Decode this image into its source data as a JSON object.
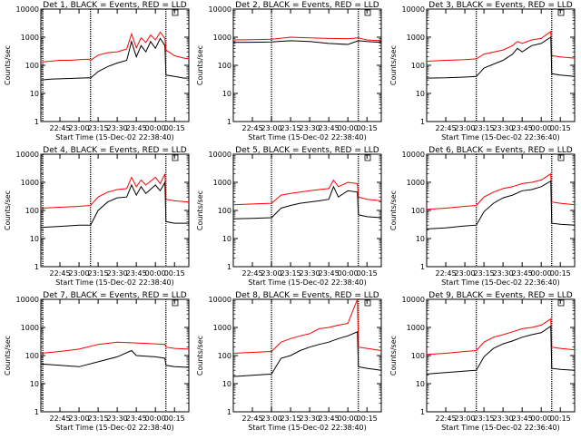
{
  "figure": {
    "background": "#ffffff",
    "events_color": "#000000",
    "lld_color": "#ff0000"
  },
  "chart_data": [
    {
      "type": "line",
      "title": "Det 1, BLACK = Events, RED = LLD",
      "xlabel": "Start Time (15-Dec-02 22:38:40)",
      "ylabel": "Counts/sec",
      "ylim": [
        1,
        10000
      ],
      "yscale": "log",
      "yticks": [
        1,
        10,
        100,
        1000,
        10000
      ],
      "ytick_labels": [
        "1",
        "10",
        "100",
        "1000",
        "10000"
      ],
      "xticks": [
        0.2,
        0.4,
        0.6,
        0.8,
        1.0,
        1.2,
        1.4
      ],
      "xtick_labels": [
        "22:45",
        "23:00",
        "23:15",
        "23:30",
        "23:45",
        "00:00",
        "00:15"
      ],
      "markers": [
        0.02,
        0.52,
        1.31
      ],
      "series": [
        {
          "name": "LLD",
          "x": [
            0.0,
            0.1,
            0.2,
            0.3,
            0.4,
            0.5,
            0.52,
            0.6,
            0.7,
            0.8,
            0.9,
            0.95,
            1.0,
            1.05,
            1.1,
            1.15,
            1.2,
            1.25,
            1.3,
            1.31,
            1.4,
            1.5,
            1.55
          ],
          "y": [
            130,
            140,
            150,
            150,
            160,
            165,
            150,
            230,
            280,
            300,
            380,
            1300,
            420,
            950,
            650,
            1200,
            800,
            1500,
            900,
            350,
            220,
            180,
            170
          ]
        },
        {
          "name": "Events",
          "x": [
            0.0,
            0.1,
            0.2,
            0.3,
            0.4,
            0.5,
            0.52,
            0.6,
            0.7,
            0.8,
            0.9,
            0.95,
            1.0,
            1.05,
            1.1,
            1.15,
            1.2,
            1.25,
            1.3,
            1.31,
            1.4,
            1.5,
            1.55
          ],
          "y": [
            30,
            32,
            33,
            34,
            35,
            36,
            35,
            60,
            90,
            120,
            150,
            700,
            200,
            500,
            300,
            700,
            400,
            900,
            500,
            45,
            40,
            35,
            35
          ]
        }
      ]
    },
    {
      "type": "line",
      "title": "Det 2, BLACK = Events, RED = LLD",
      "xlabel": "Start Time (15-Dec-02 22:38:40)",
      "ylabel": "Counts/sec",
      "ylim": [
        1,
        10000
      ],
      "yscale": "log",
      "yticks": [
        1,
        10,
        100,
        1000,
        10000
      ],
      "ytick_labels": [
        "1",
        "10",
        "100",
        "1000",
        "10000"
      ],
      "xticks": [
        0.2,
        0.4,
        0.6,
        0.8,
        1.0,
        1.2,
        1.4
      ],
      "xtick_labels": [
        "22:45",
        "23:00",
        "23:15",
        "23:30",
        "23:45",
        "00:00",
        "00:15"
      ],
      "markers": [
        0.4,
        1.31
      ],
      "series": [
        {
          "name": "LLD",
          "x": [
            0.0,
            0.2,
            0.4,
            0.6,
            0.8,
            1.0,
            1.2,
            1.31,
            1.4,
            1.55
          ],
          "y": [
            800,
            820,
            850,
            1000,
            950,
            900,
            880,
            950,
            800,
            750
          ]
        },
        {
          "name": "Events",
          "x": [
            0.0,
            0.2,
            0.4,
            0.6,
            0.8,
            1.0,
            1.2,
            1.31,
            1.4,
            1.55
          ],
          "y": [
            650,
            660,
            680,
            750,
            700,
            600,
            550,
            750,
            700,
            650
          ]
        }
      ]
    },
    {
      "type": "line",
      "title": "Det 3, BLACK = Events, RED = LLD",
      "xlabel": "Start Time (15-Dec-02 22:36:40)",
      "ylabel": "Counts/sec",
      "ylim": [
        1,
        10000
      ],
      "yscale": "log",
      "yticks": [
        1,
        10,
        100,
        1000,
        10000
      ],
      "ytick_labels": [
        "1",
        "10",
        "100",
        "1000",
        "10000"
      ],
      "xticks": [
        0.2,
        0.4,
        0.6,
        0.8,
        1.0,
        1.2,
        1.4
      ],
      "xtick_labels": [
        "22:45",
        "23:00",
        "23:15",
        "23:30",
        "23:45",
        "00:00",
        "00:15"
      ],
      "markers": [
        0.52,
        1.31
      ],
      "series": [
        {
          "name": "LLD",
          "x": [
            0.0,
            0.2,
            0.4,
            0.52,
            0.6,
            0.8,
            0.9,
            0.95,
            1.0,
            1.1,
            1.2,
            1.3,
            1.31,
            1.4,
            1.55
          ],
          "y": [
            140,
            150,
            160,
            170,
            250,
            350,
            500,
            700,
            600,
            800,
            900,
            1600,
            220,
            200,
            180
          ]
        },
        {
          "name": "Events",
          "x": [
            0.0,
            0.2,
            0.4,
            0.52,
            0.6,
            0.8,
            0.9,
            0.95,
            1.0,
            1.1,
            1.2,
            1.3,
            1.31,
            1.4,
            1.55
          ],
          "y": [
            35,
            36,
            38,
            40,
            80,
            150,
            250,
            400,
            300,
            500,
            600,
            1000,
            50,
            45,
            40
          ]
        }
      ]
    },
    {
      "type": "line",
      "title": "Det 4, BLACK = Events, RED = LLD",
      "xlabel": "Start Time (15-Dec-02 22:38:40)",
      "ylabel": "Counts/sec",
      "ylim": [
        1,
        10000
      ],
      "yscale": "log",
      "yticks": [
        1,
        10,
        100,
        1000,
        10000
      ],
      "ytick_labels": [
        "1",
        "10",
        "100",
        "1000",
        "10000"
      ],
      "xticks": [
        0.2,
        0.4,
        0.6,
        0.8,
        1.0,
        1.2,
        1.4
      ],
      "xtick_labels": [
        "22:45",
        "23:00",
        "23:15",
        "23:30",
        "23:45",
        "00:00",
        "00:15"
      ],
      "markers": [
        0.02,
        0.52,
        1.31
      ],
      "series": [
        {
          "name": "LLD",
          "x": [
            0.0,
            0.2,
            0.4,
            0.52,
            0.6,
            0.7,
            0.8,
            0.9,
            0.95,
            1.0,
            1.05,
            1.1,
            1.2,
            1.25,
            1.3,
            1.31,
            1.4,
            1.55
          ],
          "y": [
            120,
            130,
            140,
            150,
            300,
            450,
            550,
            600,
            1500,
            700,
            1200,
            800,
            1500,
            900,
            2000,
            250,
            220,
            200
          ]
        },
        {
          "name": "Events",
          "x": [
            0.0,
            0.2,
            0.4,
            0.52,
            0.6,
            0.7,
            0.8,
            0.9,
            0.95,
            1.0,
            1.05,
            1.1,
            1.2,
            1.25,
            1.3,
            1.31,
            1.4,
            1.55
          ],
          "y": [
            25,
            27,
            30,
            30,
            100,
            200,
            280,
            300,
            800,
            350,
            700,
            400,
            800,
            500,
            1000,
            40,
            35,
            35
          ]
        }
      ]
    },
    {
      "type": "line",
      "title": "Det 5, BLACK = Events, RED = LLD",
      "xlabel": "Start Time (15-Dec-02 22:38:40)",
      "ylabel": "Counts/sec",
      "ylim": [
        1,
        10000
      ],
      "yscale": "log",
      "yticks": [
        1,
        10,
        100,
        1000,
        10000
      ],
      "ytick_labels": [
        "1",
        "10",
        "100",
        "1000",
        "10000"
      ],
      "xticks": [
        0.2,
        0.4,
        0.6,
        0.8,
        1.0,
        1.2,
        1.4
      ],
      "xtick_labels": [
        "22:45",
        "23:00",
        "23:15",
        "23:30",
        "23:45",
        "00:00",
        "00:15"
      ],
      "markers": [
        0.4,
        1.31
      ],
      "series": [
        {
          "name": "LLD",
          "x": [
            0.0,
            0.2,
            0.4,
            0.5,
            0.6,
            0.7,
            0.8,
            0.9,
            1.0,
            1.05,
            1.1,
            1.2,
            1.3,
            1.31,
            1.4,
            1.55
          ],
          "y": [
            160,
            170,
            180,
            350,
            400,
            450,
            500,
            550,
            600,
            1200,
            700,
            1000,
            900,
            300,
            250,
            220
          ]
        },
        {
          "name": "Events",
          "x": [
            0.0,
            0.2,
            0.4,
            0.5,
            0.6,
            0.7,
            0.8,
            0.9,
            1.0,
            1.05,
            1.1,
            1.2,
            1.3,
            1.31,
            1.4,
            1.55
          ],
          "y": [
            50,
            52,
            55,
            120,
            150,
            180,
            200,
            220,
            250,
            700,
            300,
            500,
            450,
            70,
            60,
            55
          ]
        }
      ]
    },
    {
      "type": "line",
      "title": "Det 6, BLACK = Events, RED = LLD",
      "xlabel": "Start Time (15-Dec-02 22:36:40)",
      "ylabel": "Counts/sec",
      "ylim": [
        1,
        10000
      ],
      "yscale": "log",
      "yticks": [
        1,
        10,
        100,
        1000,
        10000
      ],
      "ytick_labels": [
        "1",
        "10",
        "100",
        "1000",
        "10000"
      ],
      "xticks": [
        0.2,
        0.4,
        0.6,
        0.8,
        1.0,
        1.2,
        1.4
      ],
      "xtick_labels": [
        "22:45",
        "23:00",
        "23:15",
        "23:30",
        "23:45",
        "00:00",
        "00:15"
      ],
      "markers": [
        0.52,
        1.31
      ],
      "series": [
        {
          "name": "LLD",
          "x": [
            0.0,
            0.2,
            0.4,
            0.52,
            0.6,
            0.7,
            0.8,
            0.9,
            1.0,
            1.1,
            1.2,
            1.3,
            1.31,
            1.4,
            1.55
          ],
          "y": [
            110,
            120,
            140,
            150,
            300,
            450,
            600,
            700,
            900,
            1000,
            1200,
            2000,
            200,
            180,
            160
          ]
        },
        {
          "name": "Events",
          "x": [
            0.0,
            0.2,
            0.4,
            0.52,
            0.6,
            0.7,
            0.8,
            0.9,
            1.0,
            1.1,
            1.2,
            1.3,
            1.31,
            1.4,
            1.55
          ],
          "y": [
            22,
            24,
            28,
            30,
            90,
            180,
            280,
            350,
            500,
            550,
            700,
            1100,
            35,
            32,
            30
          ]
        }
      ]
    },
    {
      "type": "line",
      "title": "Det 7, BLACK = Events, RED = LLD",
      "xlabel": "Start Time (15-Dec-02 22:38:40)",
      "ylabel": "Counts/sec",
      "ylim": [
        1,
        10000
      ],
      "yscale": "log",
      "yticks": [
        1,
        10,
        100,
        1000,
        10000
      ],
      "ytick_labels": [
        "1",
        "10",
        "100",
        "1000",
        "10000"
      ],
      "xticks": [
        0.2,
        0.4,
        0.6,
        0.8,
        1.0,
        1.2,
        1.4
      ],
      "xtick_labels": [
        "22:45",
        "23:00",
        "23:15",
        "23:30",
        "23:45",
        "00:00",
        "00:15"
      ],
      "markers": [
        0.02,
        1.31
      ],
      "series": [
        {
          "name": "LLD",
          "x": [
            0.0,
            0.2,
            0.4,
            0.6,
            0.8,
            1.0,
            1.2,
            1.3,
            1.31,
            1.4,
            1.55
          ],
          "y": [
            120,
            140,
            170,
            250,
            300,
            280,
            260,
            250,
            200,
            180,
            170
          ]
        },
        {
          "name": "Events",
          "x": [
            0.0,
            0.2,
            0.4,
            0.6,
            0.8,
            0.95,
            1.0,
            1.2,
            1.3,
            1.31,
            1.4,
            1.55
          ],
          "y": [
            50,
            45,
            40,
            60,
            90,
            150,
            100,
            90,
            80,
            45,
            40,
            38
          ]
        }
      ]
    },
    {
      "type": "line",
      "title": "Det 8, BLACK = Events, RED = LLD",
      "xlabel": "Start Time (15-Dec-02 22:38:40)",
      "ylabel": "Counts/sec",
      "ylim": [
        1,
        10000
      ],
      "yscale": "log",
      "yticks": [
        1,
        10,
        100,
        1000,
        10000
      ],
      "ytick_labels": [
        "1",
        "10",
        "100",
        "1000",
        "10000"
      ],
      "xticks": [
        0.2,
        0.4,
        0.6,
        0.8,
        1.0,
        1.2,
        1.4
      ],
      "xtick_labels": [
        "22:45",
        "23:00",
        "23:15",
        "23:30",
        "23:45",
        "00:00",
        "00:15"
      ],
      "markers": [
        0.4,
        1.31
      ],
      "series": [
        {
          "name": "LLD",
          "x": [
            0.0,
            0.2,
            0.4,
            0.5,
            0.6,
            0.7,
            0.8,
            0.9,
            1.0,
            1.1,
            1.2,
            1.3,
            1.31,
            1.4,
            1.55
          ],
          "y": [
            120,
            130,
            140,
            300,
            400,
            500,
            600,
            900,
            1000,
            1200,
            1400,
            10000,
            200,
            180,
            150
          ]
        },
        {
          "name": "Events",
          "x": [
            0.0,
            0.2,
            0.4,
            0.5,
            0.6,
            0.7,
            0.8,
            0.9,
            1.0,
            1.1,
            1.2,
            1.3,
            1.31,
            1.4,
            1.55
          ],
          "y": [
            18,
            20,
            22,
            80,
            100,
            150,
            200,
            250,
            300,
            400,
            500,
            700,
            40,
            35,
            30
          ]
        }
      ]
    },
    {
      "type": "line",
      "title": "Det 9, BLACK = Events, RED = LLD",
      "xlabel": "Start Time (15-Dec-02 22:36:40)",
      "ylabel": "Counts/sec",
      "ylim": [
        1,
        10000
      ],
      "yscale": "log",
      "yticks": [
        1,
        10,
        100,
        1000,
        10000
      ],
      "ytick_labels": [
        "1",
        "10",
        "100",
        "1000",
        "10000"
      ],
      "xticks": [
        0.2,
        0.4,
        0.6,
        0.8,
        1.0,
        1.2,
        1.4
      ],
      "xtick_labels": [
        "22:45",
        "23:00",
        "23:15",
        "23:30",
        "23:45",
        "00:00",
        "00:15"
      ],
      "markers": [
        0.52,
        1.31
      ],
      "series": [
        {
          "name": "LLD",
          "x": [
            0.0,
            0.2,
            0.4,
            0.52,
            0.6,
            0.7,
            0.8,
            0.9,
            1.0,
            1.1,
            1.2,
            1.3,
            1.31,
            1.4,
            1.55
          ],
          "y": [
            110,
            120,
            140,
            150,
            300,
            450,
            550,
            700,
            900,
            1000,
            1200,
            2000,
            200,
            180,
            160
          ]
        },
        {
          "name": "Events",
          "x": [
            0.0,
            0.2,
            0.4,
            0.52,
            0.6,
            0.7,
            0.8,
            0.9,
            1.0,
            1.1,
            1.2,
            1.3,
            1.31,
            1.4,
            1.55
          ],
          "y": [
            22,
            25,
            28,
            30,
            90,
            180,
            260,
            330,
            450,
            550,
            650,
            1100,
            35,
            32,
            30
          ]
        }
      ]
    }
  ]
}
